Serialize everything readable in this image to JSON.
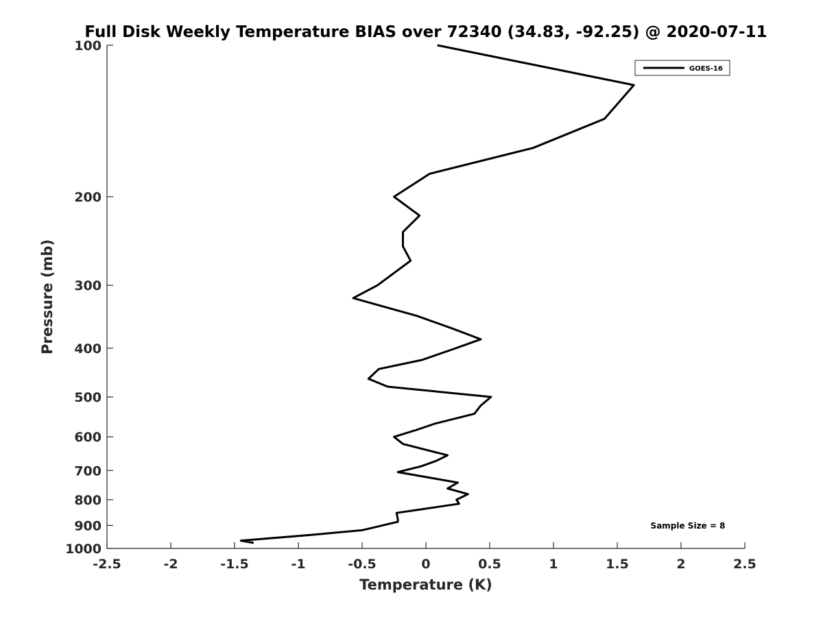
{
  "chart_data": {
    "type": "line",
    "title": "Full Disk Weekly Temperature BIAS over 72340 (34.83, -92.25) @ 2020-07-11",
    "xlabel": "Temperature (K)",
    "ylabel": "Pressure (mb)",
    "xlim": [
      -2.5,
      2.5
    ],
    "ylim": [
      100,
      1000
    ],
    "y_scale": "log",
    "y_reversed": true,
    "grid": false,
    "x_ticks": [
      -2.5,
      -2,
      -1.5,
      -1,
      -0.5,
      0,
      0.5,
      1,
      1.5,
      2,
      2.5
    ],
    "x_tick_labels": [
      "-2.5",
      "-2",
      "-1.5",
      "-1",
      "-0.5",
      "0",
      "0.5",
      "1",
      "1.5",
      "2",
      "2.5"
    ],
    "y_ticks": [
      100,
      200,
      300,
      400,
      500,
      600,
      700,
      800,
      900,
      1000
    ],
    "y_tick_labels": [
      "100",
      "200",
      "300",
      "400",
      "500",
      "600",
      "700",
      "800",
      "900",
      "1000"
    ],
    "legend_position": "top-right",
    "annotation": "Sample Size = 8",
    "series": [
      {
        "name": "GOES-16",
        "color": "#000000",
        "points": [
          [
            0.09,
            100
          ],
          [
            1.63,
            120
          ],
          [
            1.4,
            140
          ],
          [
            0.84,
            160
          ],
          [
            0.03,
            180
          ],
          [
            -0.25,
            200
          ],
          [
            -0.05,
            218
          ],
          [
            -0.18,
            235
          ],
          [
            -0.18,
            251
          ],
          [
            -0.12,
            268
          ],
          [
            -0.38,
            300
          ],
          [
            -0.57,
            318
          ],
          [
            -0.07,
            345
          ],
          [
            0.2,
            365
          ],
          [
            0.43,
            384
          ],
          [
            0.21,
            402
          ],
          [
            -0.03,
            422
          ],
          [
            -0.37,
            440
          ],
          [
            -0.45,
            460
          ],
          [
            -0.3,
            477
          ],
          [
            0.51,
            500
          ],
          [
            0.43,
            520
          ],
          [
            0.38,
            540
          ],
          [
            0.07,
            565
          ],
          [
            -0.08,
            582
          ],
          [
            -0.25,
            600
          ],
          [
            -0.18,
            620
          ],
          [
            0.17,
            653
          ],
          [
            0.08,
            670
          ],
          [
            -0.04,
            687
          ],
          [
            -0.22,
            705
          ],
          [
            0.25,
            740
          ],
          [
            0.17,
            760
          ],
          [
            0.33,
            780
          ],
          [
            0.24,
            800
          ],
          [
            0.26,
            815
          ],
          [
            -0.02,
            835
          ],
          [
            -0.23,
            850
          ],
          [
            -0.22,
            875
          ],
          [
            -0.22,
            885
          ],
          [
            -0.38,
            905
          ],
          [
            -0.5,
            920
          ],
          [
            -0.9,
            940
          ],
          [
            -1.45,
            965
          ],
          [
            -1.35,
            975
          ]
        ]
      }
    ]
  }
}
